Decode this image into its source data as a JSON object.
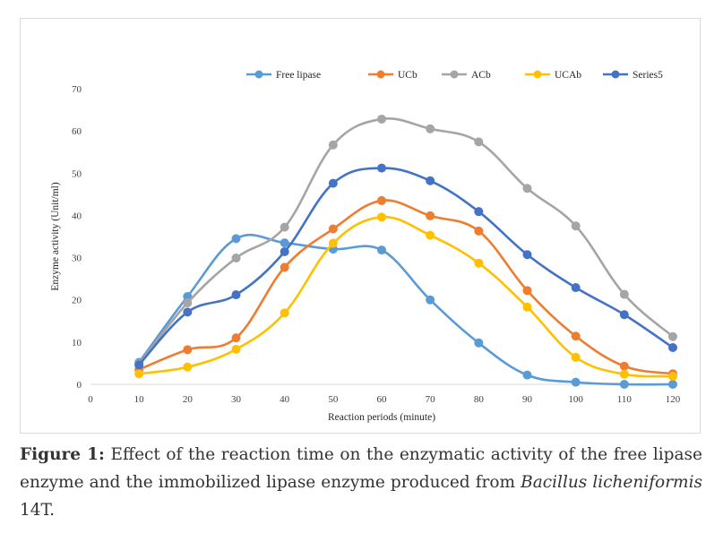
{
  "chart_data": {
    "type": "line",
    "title": "",
    "xlabel": "Reaction periods (minute)",
    "ylabel": "Enzyme activity (Unit/ml)",
    "xlim": [
      0,
      120
    ],
    "ylim": [
      0,
      70
    ],
    "x_ticks": [
      0,
      10,
      20,
      30,
      40,
      50,
      60,
      70,
      80,
      90,
      100,
      110,
      120
    ],
    "y_ticks": [
      0,
      10,
      20,
      30,
      40,
      50,
      60,
      70
    ],
    "grid": false,
    "smooth": true,
    "legend_position": "top",
    "x": [
      10,
      20,
      30,
      40,
      50,
      60,
      70,
      80,
      90,
      100,
      110,
      120
    ],
    "series": [
      {
        "name": "Free lipase",
        "color": "#5b9bd5",
        "values": [
          5.2,
          20.8,
          34.5,
          33.5,
          32.0,
          31.8,
          20.0,
          9.8,
          2.2,
          0.5,
          0.0,
          0.0
        ]
      },
      {
        "name": "UCb",
        "color": "#ed7d31",
        "values": [
          3.5,
          8.2,
          11.0,
          27.7,
          36.8,
          43.5,
          39.9,
          36.3,
          22.2,
          11.4,
          4.3,
          2.5
        ]
      },
      {
        "name": "ACb",
        "color": "#a5a5a5",
        "values": [
          4.8,
          19.3,
          29.9,
          37.2,
          56.7,
          62.8,
          60.5,
          57.4,
          46.4,
          37.5,
          21.3,
          11.3
        ]
      },
      {
        "name": "UCAb",
        "color": "#ffc000",
        "values": [
          2.5,
          4.1,
          8.3,
          16.9,
          33.4,
          39.6,
          35.3,
          28.7,
          18.3,
          6.4,
          2.4,
          1.9
        ]
      },
      {
        "name": "Series5",
        "color": "#4472c4",
        "values": [
          4.6,
          17.1,
          21.2,
          31.4,
          47.6,
          51.2,
          48.2,
          40.9,
          30.7,
          22.9,
          16.5,
          8.7
        ]
      }
    ]
  },
  "caption": {
    "label": "Figure 1:",
    "text_before": " Effect of the reaction time on the enzymatic activity of the free lipase enzyme and the immobilized lipase enzyme produced from ",
    "italic": "Bacillus licheniformis",
    "text_after": " 14T."
  }
}
